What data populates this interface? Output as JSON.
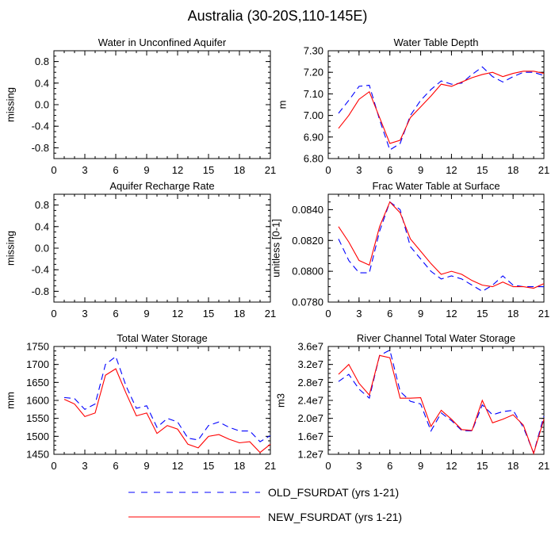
{
  "title": "Australia (30-20S,110-145E)",
  "colors": {
    "old": "#0000ff",
    "new": "#ff0000",
    "axis": "#000000",
    "background": "#ffffff"
  },
  "legend": {
    "placement": "bottom-center",
    "items": [
      {
        "series": "old",
        "label": "OLD_FSURDAT (yrs 1-21)",
        "style": "dashed"
      },
      {
        "series": "new",
        "label": "NEW_FSURDAT (yrs 1-21)",
        "style": "solid"
      }
    ]
  },
  "chart_data": [
    {
      "type": "line",
      "title": "Water in Unconfined Aquifer",
      "ylabel": "missing",
      "xlim": [
        0,
        21
      ],
      "ylim": [
        -1.0,
        1.0
      ],
      "xticks": [
        0,
        3,
        6,
        9,
        12,
        15,
        18,
        21
      ],
      "xtick_labels": [
        "0",
        "3",
        "6",
        "9",
        "12",
        "15",
        "18",
        "21"
      ],
      "yticks": [
        -0.8,
        -0.4,
        0.0,
        0.4,
        0.8
      ],
      "ytick_labels": [
        "-0.8",
        "-0.4",
        "0.0",
        "0.4",
        "0.8"
      ],
      "grid": false,
      "x": [],
      "series": []
    },
    {
      "type": "line",
      "title": "Water Table Depth",
      "ylabel": "m",
      "xlim": [
        0,
        21
      ],
      "ylim": [
        6.8,
        7.3
      ],
      "xticks": [
        0,
        3,
        6,
        9,
        12,
        15,
        18,
        21
      ],
      "xtick_labels": [
        "0",
        "3",
        "6",
        "9",
        "12",
        "15",
        "18",
        "21"
      ],
      "yticks": [
        6.8,
        6.9,
        7.0,
        7.1,
        7.2,
        7.3
      ],
      "ytick_labels": [
        "6.80",
        "6.90",
        "7.00",
        "7.10",
        "7.20",
        "7.30"
      ],
      "grid": false,
      "x": [
        1,
        2,
        3,
        4,
        5,
        6,
        7,
        8,
        9,
        10,
        11,
        12,
        13,
        14,
        15,
        16,
        17,
        18,
        19,
        20,
        21
      ],
      "series": [
        {
          "key": "old",
          "values": [
            7.01,
            7.07,
            7.135,
            7.14,
            6.98,
            6.84,
            6.87,
            7.0,
            7.07,
            7.12,
            7.16,
            7.145,
            7.15,
            7.19,
            7.225,
            7.18,
            7.155,
            7.18,
            7.2,
            7.2,
            7.185
          ]
        },
        {
          "key": "new",
          "values": [
            6.94,
            7.0,
            7.075,
            7.11,
            6.99,
            6.87,
            6.885,
            6.99,
            7.04,
            7.09,
            7.145,
            7.135,
            7.155,
            7.175,
            7.19,
            7.2,
            7.18,
            7.195,
            7.205,
            7.205,
            7.195
          ]
        }
      ]
    },
    {
      "type": "line",
      "title": "Aquifer Recharge Rate",
      "ylabel": "missing",
      "xlim": [
        0,
        21
      ],
      "ylim": [
        -1.0,
        1.0
      ],
      "xticks": [
        0,
        3,
        6,
        9,
        12,
        15,
        18,
        21
      ],
      "xtick_labels": [
        "0",
        "3",
        "6",
        "9",
        "12",
        "15",
        "18",
        "21"
      ],
      "yticks": [
        -0.8,
        -0.4,
        0.0,
        0.4,
        0.8
      ],
      "ytick_labels": [
        "-0.8",
        "-0.4",
        "0.0",
        "0.4",
        "0.8"
      ],
      "grid": false,
      "x": [],
      "series": []
    },
    {
      "type": "line",
      "title": "Frac Water Table at Surface",
      "ylabel": "unitless [0-1]",
      "xlim": [
        0,
        21
      ],
      "ylim": [
        0.078,
        0.085
      ],
      "xticks": [
        0,
        3,
        6,
        9,
        12,
        15,
        18,
        21
      ],
      "xtick_labels": [
        "0",
        "3",
        "6",
        "9",
        "12",
        "15",
        "18",
        "21"
      ],
      "yticks": [
        0.078,
        0.08,
        0.082,
        0.084
      ],
      "ytick_labels": [
        "0.0780",
        "0.0800",
        "0.0820",
        "0.0840"
      ],
      "grid": false,
      "x": [
        1,
        2,
        3,
        4,
        5,
        6,
        7,
        8,
        9,
        10,
        11,
        12,
        13,
        14,
        15,
        16,
        17,
        18,
        19,
        20,
        21
      ],
      "series": [
        {
          "key": "old",
          "values": [
            0.0821,
            0.0807,
            0.0799,
            0.0799,
            0.0826,
            0.0845,
            0.084,
            0.0816,
            0.0808,
            0.08,
            0.0795,
            0.0797,
            0.0795,
            0.0791,
            0.0787,
            0.0791,
            0.0797,
            0.0791,
            0.079,
            0.079,
            0.079
          ]
        },
        {
          "key": "new",
          "values": [
            0.0829,
            0.0819,
            0.0807,
            0.0804,
            0.0829,
            0.0845,
            0.0838,
            0.0821,
            0.0813,
            0.0805,
            0.0798,
            0.08,
            0.0798,
            0.0794,
            0.0791,
            0.079,
            0.0793,
            0.079,
            0.079,
            0.0789,
            0.0792
          ]
        }
      ]
    },
    {
      "type": "line",
      "title": "Total Water Storage",
      "ylabel": "mm",
      "xlim": [
        0,
        21
      ],
      "ylim": [
        1450,
        1750
      ],
      "xticks": [
        0,
        3,
        6,
        9,
        12,
        15,
        18,
        21
      ],
      "xtick_labels": [
        "0",
        "3",
        "6",
        "9",
        "12",
        "15",
        "18",
        "21"
      ],
      "yticks": [
        1450,
        1500,
        1550,
        1600,
        1650,
        1700,
        1750
      ],
      "ytick_labels": [
        "1450",
        "1500",
        "1550",
        "1600",
        "1650",
        "1700",
        "1750"
      ],
      "grid": false,
      "x": [
        1,
        2,
        3,
        4,
        5,
        6,
        7,
        8,
        9,
        10,
        11,
        12,
        13,
        14,
        15,
        16,
        17,
        18,
        19,
        20,
        21
      ],
      "series": [
        {
          "key": "old",
          "values": [
            1608,
            1605,
            1575,
            1590,
            1700,
            1722,
            1640,
            1578,
            1585,
            1525,
            1550,
            1540,
            1495,
            1490,
            1530,
            1540,
            1525,
            1515,
            1515,
            1485,
            1502
          ]
        },
        {
          "key": "new",
          "values": [
            1603,
            1590,
            1555,
            1565,
            1670,
            1688,
            1620,
            1557,
            1565,
            1508,
            1530,
            1520,
            1478,
            1468,
            1500,
            1505,
            1492,
            1482,
            1485,
            1455,
            1478
          ]
        }
      ]
    },
    {
      "type": "line",
      "title": "River Channel Total Water Storage",
      "ylabel": "m3",
      "xlim": [
        0,
        21
      ],
      "ylim": [
        12000000,
        36000000
      ],
      "xticks": [
        0,
        3,
        6,
        9,
        12,
        15,
        18,
        21
      ],
      "xtick_labels": [
        "0",
        "3",
        "6",
        "9",
        "12",
        "15",
        "18",
        "21"
      ],
      "yticks": [
        12000000,
        16000000,
        20000000,
        24000000,
        28000000,
        32000000,
        36000000
      ],
      "ytick_labels": [
        "1.2e7",
        "1.6e7",
        "2.0e7",
        "2.4e7",
        "2.8e7",
        "3.2e7",
        "3.6e7"
      ],
      "grid": false,
      "x": [
        1,
        2,
        3,
        4,
        5,
        6,
        7,
        8,
        9,
        10,
        11,
        12,
        13,
        14,
        15,
        16,
        17,
        18,
        19,
        20,
        21
      ],
      "series": [
        {
          "key": "old",
          "values": [
            28200000,
            29800000,
            26500000,
            24500000,
            34000000,
            35200000,
            26000000,
            23800000,
            23200000,
            17200000,
            21200000,
            19500000,
            17300000,
            17200000,
            23000000,
            20800000,
            21500000,
            21800000,
            18000000,
            12300000,
            20500000
          ]
        },
        {
          "key": "new",
          "values": [
            29800000,
            32000000,
            27800000,
            25200000,
            34000000,
            33500000,
            24500000,
            24500000,
            24600000,
            18200000,
            21800000,
            19800000,
            17500000,
            17300000,
            24000000,
            19000000,
            19800000,
            20800000,
            18500000,
            12200000,
            19800000
          ]
        }
      ]
    }
  ]
}
